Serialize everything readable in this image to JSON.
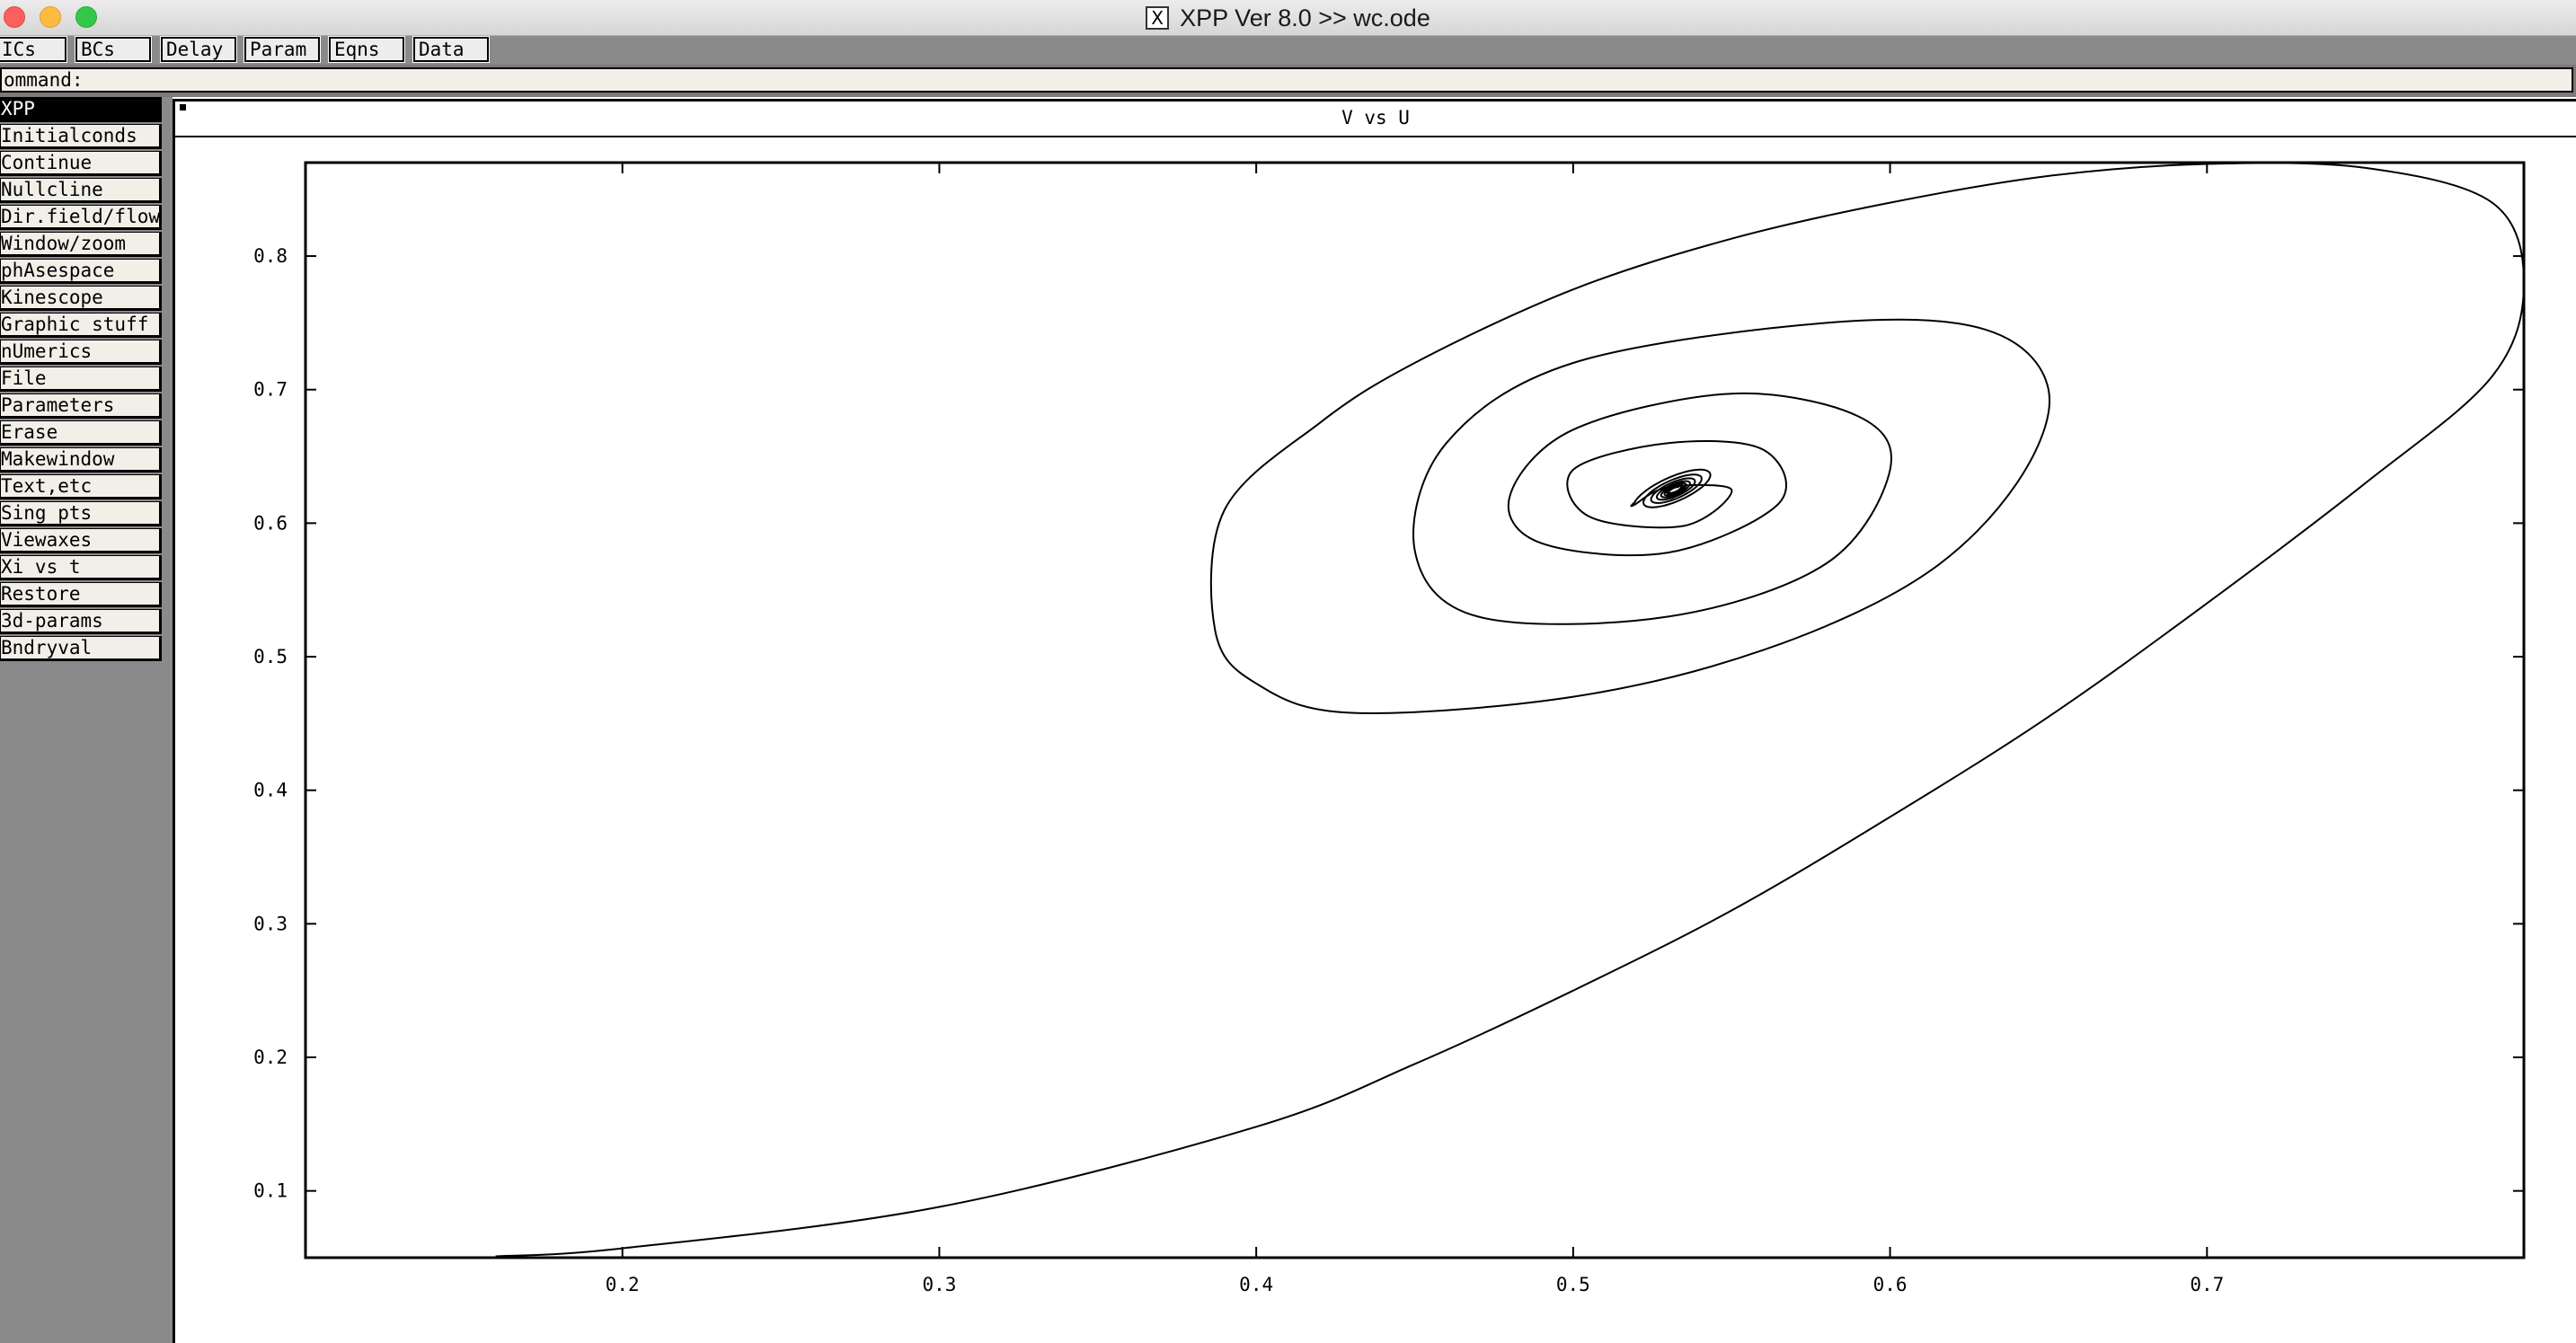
{
  "window": {
    "title": "XPP Ver 8.0 >> wc.ode",
    "x11_icon": "x11-icon"
  },
  "toolbar": {
    "buttons": [
      "ICs",
      "BCs",
      "Delay",
      "Param",
      "Eqns",
      "Data"
    ]
  },
  "command": {
    "label": "ommand:",
    "value": ""
  },
  "menu": {
    "items": [
      "XPP",
      "Initialconds",
      "Continue",
      "Nullcline",
      "Dir.field/flow",
      "Window/zoom",
      "phAsespace",
      "Kinescope",
      "Graphic stuff",
      "nUmerics",
      "File",
      "Parameters",
      "Erase",
      "Makewindow",
      "Text,etc",
      "Sing pts",
      "Viewaxes",
      "Xi vs t",
      "Restore",
      "3d-params",
      "Bndryval"
    ],
    "active_index": 0
  },
  "graph": {
    "title": "V vs U"
  },
  "chart_data": {
    "type": "line",
    "title": "V vs U",
    "xlabel": "",
    "ylabel": "",
    "xlim": [
      0.1,
      0.8
    ],
    "ylim": [
      0.05,
      0.87
    ],
    "xticks": [
      0.2,
      0.3,
      0.4,
      0.5,
      0.6,
      0.7
    ],
    "yticks": [
      0.1,
      0.2,
      0.3,
      0.4,
      0.5,
      0.6,
      0.7,
      0.8
    ],
    "grid": false,
    "series": [
      {
        "name": "",
        "description_points": [
          [
            0.16,
            0.051
          ],
          [
            0.2,
            0.057
          ],
          [
            0.3,
            0.088
          ],
          [
            0.4,
            0.148
          ],
          [
            0.45,
            0.195
          ],
          [
            0.5,
            0.25
          ],
          [
            0.55,
            0.31
          ],
          [
            0.6,
            0.38
          ],
          [
            0.65,
            0.455
          ],
          [
            0.7,
            0.54
          ],
          [
            0.75,
            0.63
          ],
          [
            0.79,
            0.71
          ],
          [
            0.8,
            0.78
          ],
          [
            0.79,
            0.84
          ],
          [
            0.75,
            0.866
          ],
          [
            0.7,
            0.869
          ],
          [
            0.65,
            0.86
          ],
          [
            0.6,
            0.84
          ],
          [
            0.55,
            0.813
          ],
          [
            0.5,
            0.775
          ],
          [
            0.45,
            0.72
          ],
          [
            0.42,
            0.675
          ],
          [
            0.39,
            0.61
          ],
          [
            0.387,
            0.52
          ],
          [
            0.4,
            0.48
          ],
          [
            0.43,
            0.458
          ],
          [
            0.5,
            0.47
          ],
          [
            0.56,
            0.505
          ],
          [
            0.61,
            0.56
          ],
          [
            0.64,
            0.63
          ],
          [
            0.65,
            0.7
          ],
          [
            0.63,
            0.745
          ],
          [
            0.58,
            0.75
          ],
          [
            0.5,
            0.72
          ],
          [
            0.46,
            0.66
          ],
          [
            0.45,
            0.58
          ],
          [
            0.47,
            0.53
          ],
          [
            0.53,
            0.53
          ],
          [
            0.58,
            0.57
          ],
          [
            0.6,
            0.64
          ],
          [
            0.59,
            0.68
          ],
          [
            0.55,
            0.697
          ],
          [
            0.5,
            0.67
          ],
          [
            0.48,
            0.62
          ],
          [
            0.49,
            0.585
          ],
          [
            0.53,
            0.578
          ],
          [
            0.565,
            0.615
          ],
          [
            0.56,
            0.655
          ],
          [
            0.53,
            0.66
          ],
          [
            0.5,
            0.64
          ],
          [
            0.505,
            0.605
          ],
          [
            0.535,
            0.598
          ],
          [
            0.55,
            0.625
          ],
          [
            0.53,
            0.627
          ]
        ]
      }
    ]
  },
  "colors": {
    "title_bar": "#dedede",
    "panel_gray": "#8a8a8a",
    "button_face": "#ededed",
    "menu_face": "#f2efe8",
    "close": "#fc605c",
    "minimize": "#fdbc40",
    "maximize": "#34c84a"
  }
}
